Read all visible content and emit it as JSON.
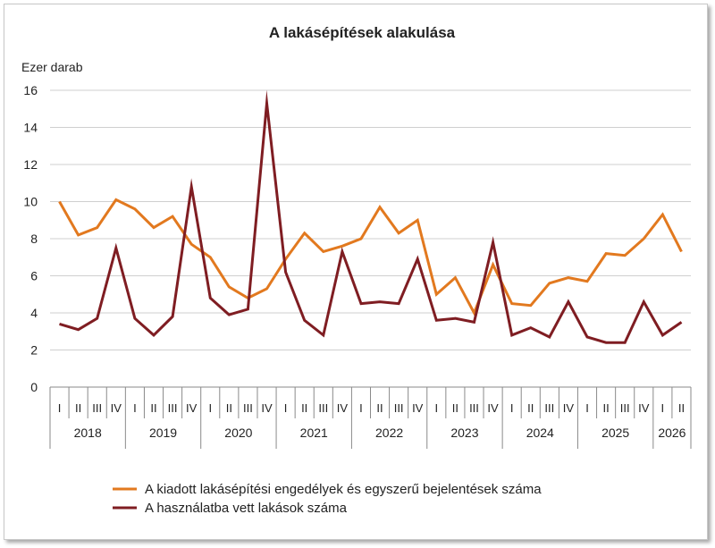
{
  "chart_data": {
    "type": "line",
    "title": "A lakásépítések alakulása",
    "ylabel": "Ezer darab",
    "xlabel": "",
    "ylim": [
      0,
      16
    ],
    "yticks": [
      0,
      2,
      4,
      6,
      8,
      10,
      12,
      14,
      16
    ],
    "grid": true,
    "legend_position": "bottom",
    "quarters": [
      "I",
      "II",
      "III",
      "IV",
      "I",
      "II",
      "III",
      "IV",
      "I",
      "II",
      "III",
      "IV",
      "I",
      "II",
      "III",
      "IV",
      "I",
      "II",
      "III",
      "IV",
      "I",
      "II",
      "III",
      "IV",
      "I",
      "II",
      "III",
      "IV",
      "I",
      "II",
      "III",
      "IV",
      "I",
      "II"
    ],
    "years": [
      {
        "label": "2018",
        "quarters": 4
      },
      {
        "label": "2019",
        "quarters": 4
      },
      {
        "label": "2020",
        "quarters": 4
      },
      {
        "label": "2021",
        "quarters": 4
      },
      {
        "label": "2022",
        "quarters": 4
      },
      {
        "label": "2023",
        "quarters": 4
      },
      {
        "label": "2024",
        "quarters": 4
      },
      {
        "label": "2025",
        "quarters": 4
      },
      {
        "label": "2026",
        "quarters": 2
      }
    ],
    "series": [
      {
        "name": "A kiadott lakásépítési engedélyek és egyszerű bejelentések száma",
        "color": "#e2791f",
        "values": [
          10.0,
          8.2,
          8.6,
          10.1,
          9.6,
          8.6,
          9.2,
          7.7,
          7.0,
          5.4,
          4.8,
          5.3,
          6.9,
          8.3,
          7.3,
          7.6,
          8.0,
          9.7,
          8.3,
          9.0,
          5.0,
          5.9,
          4.0,
          6.6,
          4.5,
          4.4,
          5.6,
          5.9,
          5.7,
          7.2,
          7.1,
          8.0,
          9.3,
          7.3
        ]
      },
      {
        "name": "A használatba vett lakások száma",
        "color": "#7f1d22",
        "values": [
          3.4,
          3.1,
          3.7,
          7.5,
          3.7,
          2.8,
          3.8,
          10.8,
          4.8,
          3.9,
          4.2,
          15.3,
          6.2,
          3.6,
          2.8,
          7.3,
          4.5,
          4.6,
          4.5,
          6.9,
          3.6,
          3.7,
          3.5,
          7.8,
          2.8,
          3.2,
          2.7,
          4.6,
          2.7,
          2.4,
          2.4,
          4.6,
          2.8,
          3.5
        ]
      }
    ]
  }
}
